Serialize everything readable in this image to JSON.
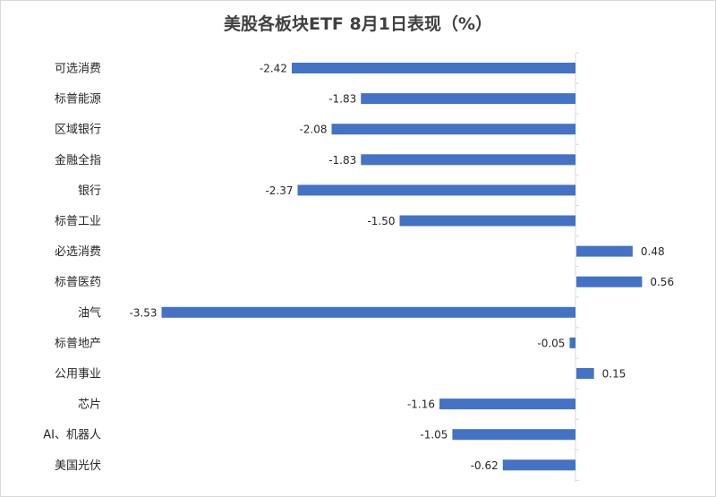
{
  "chart_data": {
    "type": "bar",
    "orientation": "horizontal",
    "title": "美股各板块ETF  8月1日表现（%）",
    "categories": [
      "可选消费",
      "标普能源",
      "区域银行",
      "金融全指",
      "银行",
      "标普工业",
      "必选消费",
      "标普医药",
      "油气",
      "标普地产",
      "公用事业",
      "芯片",
      "AI、机器人",
      "美国光伏"
    ],
    "values": [
      -2.42,
      -1.83,
      -2.08,
      -1.83,
      -2.37,
      -1.5,
      0.48,
      0.56,
      -3.53,
      -0.05,
      0.15,
      -1.16,
      -1.05,
      -0.62
    ],
    "value_labels": [
      "-2.42",
      "-1.83",
      "-2.08",
      "-1.83",
      "-2.37",
      "-1.50",
      "0.48",
      "0.56",
      "-3.53",
      "-0.05",
      "0.15",
      "-1.16",
      "-1.05",
      "-0.62"
    ],
    "xlim": [
      -3.53,
      0.56
    ],
    "grid": false,
    "legend": "none",
    "bar_color": "#4472C4",
    "axis_color": "#d9d9d9"
  }
}
